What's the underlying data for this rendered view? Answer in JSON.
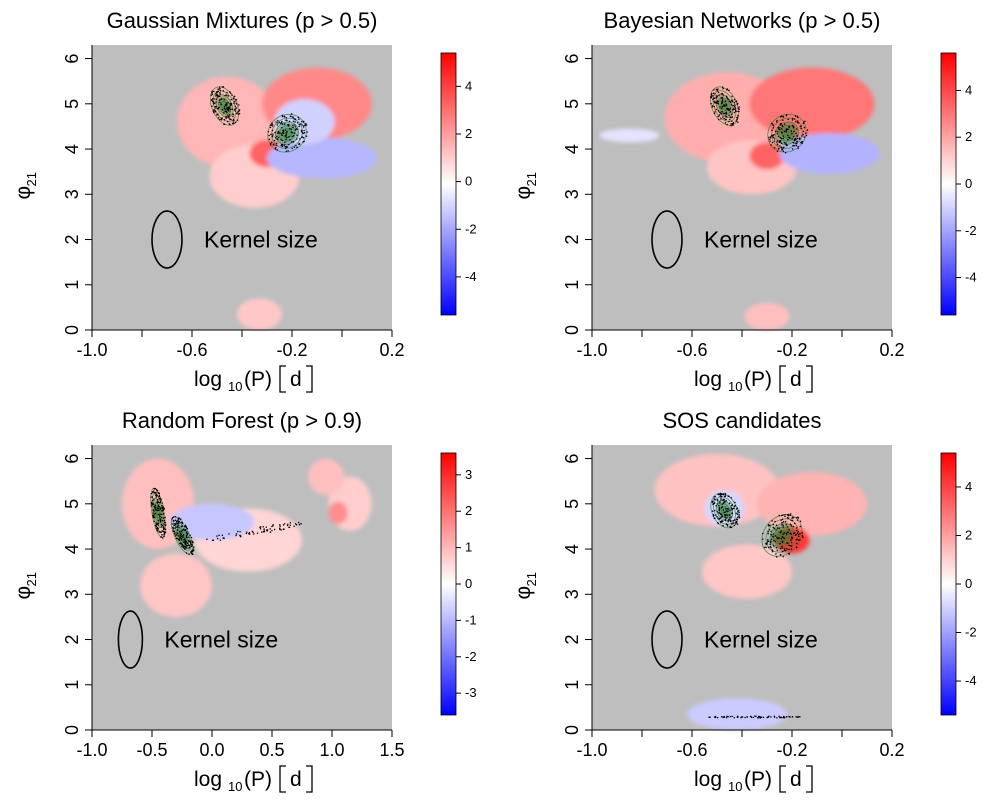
{
  "figure": {
    "type": "heatmap",
    "colors": {
      "negative": "#0000ff",
      "zero": "#ffffff",
      "positive": "#ff0000",
      "masked": "#bebebe",
      "contours": "#2e7d32",
      "points": "#000000"
    },
    "common_labels": {
      "xlabel_main": "log",
      "xlabel_base": "10",
      "xlabel_var": "(P)",
      "xlabel_unit": "d",
      "ylabel_main": "φ",
      "ylabel_sub": "21",
      "annotation": "Kernel size"
    }
  },
  "chart_data": [
    {
      "id": "gm",
      "type": "heatmap",
      "title": "Gaussian Mixtures (p > 0.5)",
      "xlabel": "log10(P) [d]",
      "ylabel": "φ21",
      "xlim": [
        -1.0,
        0.2
      ],
      "ylim": [
        0,
        6.3
      ],
      "xticks": [
        -1.0,
        -0.8,
        -0.6,
        -0.4,
        -0.2,
        0.0,
        0.2
      ],
      "xtick_labels": [
        "-1.0",
        "",
        "-0.6",
        "",
        "-0.2",
        "",
        "0.2"
      ],
      "yticks": [
        0,
        1,
        2,
        3,
        4,
        5,
        6
      ],
      "ytick_labels": [
        "0",
        "1",
        "2",
        "3",
        "4",
        "5",
        "6"
      ],
      "colorbar": {
        "range": [
          -5.6,
          5.4
        ],
        "ticks": [
          -4,
          -2,
          0,
          2,
          4
        ],
        "tick_labels": [
          "-4",
          "-2",
          "0",
          "2",
          "4"
        ]
      },
      "annotation": "Kernel size",
      "kernel": {
        "x": -0.7,
        "y": 2.0,
        "rx": 0.06,
        "ry": 0.63
      },
      "blobs": [
        {
          "x": -0.46,
          "y": 4.6,
          "rx": 0.2,
          "ry": 1.0,
          "v": 1.6
        },
        {
          "x": -0.1,
          "y": 5.0,
          "rx": 0.22,
          "ry": 0.8,
          "v": 2.6
        },
        {
          "x": -0.35,
          "y": 3.4,
          "rx": 0.18,
          "ry": 0.7,
          "v": 1.1
        },
        {
          "x": -0.3,
          "y": 3.9,
          "rx": 0.07,
          "ry": 0.3,
          "v": 3.4
        },
        {
          "x": -0.08,
          "y": 3.8,
          "rx": 0.22,
          "ry": 0.45,
          "v": -1.6
        },
        {
          "x": -0.15,
          "y": 4.6,
          "rx": 0.12,
          "ry": 0.5,
          "v": -1.0
        },
        {
          "x": -0.33,
          "y": 0.35,
          "rx": 0.09,
          "ry": 0.35,
          "v": 1.2
        }
      ],
      "clusters": [
        {
          "x": -0.47,
          "y": 4.95,
          "rx": 0.05,
          "ry": 0.45,
          "rot": -25,
          "dense": true
        },
        {
          "x": -0.22,
          "y": 4.35,
          "rx": 0.08,
          "ry": 0.4,
          "rot": -40,
          "dense": true
        }
      ]
    },
    {
      "id": "bn",
      "type": "heatmap",
      "title": "Bayesian Networks (p > 0.5)",
      "xlabel": "log10(P) [d]",
      "ylabel": "φ21",
      "xlim": [
        -1.0,
        0.2
      ],
      "ylim": [
        0,
        6.3
      ],
      "xticks": [
        -1.0,
        -0.8,
        -0.6,
        -0.4,
        -0.2,
        0.0,
        0.2
      ],
      "xtick_labels": [
        "-1.0",
        "",
        "-0.6",
        "",
        "-0.2",
        "",
        "0.2"
      ],
      "yticks": [
        0,
        1,
        2,
        3,
        4,
        5,
        6
      ],
      "ytick_labels": [
        "0",
        "1",
        "2",
        "3",
        "4",
        "5",
        "6"
      ],
      "colorbar": {
        "range": [
          -5.6,
          5.6
        ],
        "ticks": [
          -4,
          -2,
          0,
          2,
          4
        ],
        "tick_labels": [
          "-4",
          "-2",
          "0",
          "2",
          "4"
        ]
      },
      "annotation": "Kernel size",
      "kernel": {
        "x": -0.7,
        "y": 2.0,
        "rx": 0.06,
        "ry": 0.63
      },
      "blobs": [
        {
          "x": -0.46,
          "y": 4.7,
          "rx": 0.25,
          "ry": 1.0,
          "v": 1.8
        },
        {
          "x": -0.12,
          "y": 5.0,
          "rx": 0.25,
          "ry": 0.8,
          "v": 3.0
        },
        {
          "x": -0.36,
          "y": 3.6,
          "rx": 0.18,
          "ry": 0.6,
          "v": 1.3
        },
        {
          "x": -0.3,
          "y": 3.85,
          "rx": 0.07,
          "ry": 0.3,
          "v": 3.4
        },
        {
          "x": -0.05,
          "y": 3.9,
          "rx": 0.2,
          "ry": 0.45,
          "v": -1.7
        },
        {
          "x": -0.85,
          "y": 4.3,
          "rx": 0.12,
          "ry": 0.15,
          "v": -0.6
        },
        {
          "x": -0.3,
          "y": 0.3,
          "rx": 0.09,
          "ry": 0.3,
          "v": 1.4
        }
      ],
      "clusters": [
        {
          "x": -0.47,
          "y": 4.95,
          "rx": 0.05,
          "ry": 0.45,
          "rot": -25,
          "dense": true
        },
        {
          "x": -0.22,
          "y": 4.35,
          "rx": 0.08,
          "ry": 0.4,
          "rot": -40,
          "dense": true
        }
      ]
    },
    {
      "id": "rf",
      "type": "heatmap",
      "title": "Random Forest (p > 0.9)",
      "xlabel": "log10(P) [d]",
      "ylabel": "φ21",
      "xlim": [
        -1.0,
        1.5
      ],
      "ylim": [
        0,
        6.3
      ],
      "xticks": [
        -1.0,
        -0.5,
        0.0,
        0.5,
        1.0,
        1.5
      ],
      "xtick_labels": [
        "-1.0",
        "-0.5",
        "0.0",
        "0.5",
        "1.0",
        "1.5"
      ],
      "yticks": [
        0,
        1,
        2,
        3,
        4,
        5,
        6
      ],
      "ytick_labels": [
        "0",
        "1",
        "2",
        "3",
        "4",
        "5",
        "6"
      ],
      "colorbar": {
        "range": [
          -3.6,
          3.6
        ],
        "ticks": [
          -3,
          -2,
          -1,
          0,
          1,
          2,
          3
        ],
        "tick_labels": [
          "-3",
          "-2",
          "-1",
          "0",
          "1",
          "2",
          "3"
        ]
      },
      "annotation": "Kernel size",
      "kernel": {
        "x": -0.68,
        "y": 2.0,
        "rx": 0.1,
        "ry": 0.63
      },
      "blobs": [
        {
          "x": -0.45,
          "y": 5.0,
          "rx": 0.3,
          "ry": 1.0,
          "v": 0.9
        },
        {
          "x": 0.3,
          "y": 4.2,
          "rx": 0.45,
          "ry": 0.7,
          "v": 0.6
        },
        {
          "x": -0.3,
          "y": 3.2,
          "rx": 0.3,
          "ry": 0.7,
          "v": 0.8
        },
        {
          "x": 0.0,
          "y": 4.6,
          "rx": 0.35,
          "ry": 0.4,
          "v": -0.8
        },
        {
          "x": 1.15,
          "y": 5.0,
          "rx": 0.18,
          "ry": 0.6,
          "v": 0.7
        },
        {
          "x": 0.95,
          "y": 5.6,
          "rx": 0.15,
          "ry": 0.4,
          "v": 0.9
        },
        {
          "x": 1.05,
          "y": 4.8,
          "rx": 0.08,
          "ry": 0.25,
          "v": 1.6
        }
      ],
      "clusters": [
        {
          "x": -0.45,
          "y": 4.8,
          "rx": 0.05,
          "ry": 0.55,
          "rot": -10,
          "dense": true
        },
        {
          "x": -0.25,
          "y": 4.3,
          "rx": 0.06,
          "ry": 0.45,
          "rot": -25,
          "dense": true
        },
        {
          "x": 0.35,
          "y": 4.4,
          "rx": 0.4,
          "ry": 0.08,
          "rot": -10,
          "dense": false
        }
      ]
    },
    {
      "id": "sos",
      "type": "heatmap",
      "title": "SOS candidates",
      "xlabel": "log10(P) [d]",
      "ylabel": "φ21",
      "xlim": [
        -1.0,
        0.2
      ],
      "ylim": [
        0,
        6.3
      ],
      "xticks": [
        -1.0,
        -0.8,
        -0.6,
        -0.4,
        -0.2,
        0.0,
        0.2
      ],
      "xtick_labels": [
        "-1.0",
        "",
        "-0.6",
        "",
        "-0.2",
        "",
        "0.2"
      ],
      "yticks": [
        0,
        1,
        2,
        3,
        4,
        5,
        6
      ],
      "ytick_labels": [
        "0",
        "1",
        "2",
        "3",
        "4",
        "5",
        "6"
      ],
      "colorbar": {
        "range": [
          -5.4,
          5.4
        ],
        "ticks": [
          -4,
          -2,
          0,
          2,
          4
        ],
        "tick_labels": [
          "-4",
          "-2",
          "0",
          "2",
          "4"
        ]
      },
      "annotation": "Kernel size",
      "kernel": {
        "x": -0.7,
        "y": 2.0,
        "rx": 0.06,
        "ry": 0.63
      },
      "blobs": [
        {
          "x": -0.5,
          "y": 5.3,
          "rx": 0.25,
          "ry": 0.8,
          "v": 1.3
        },
        {
          "x": -0.12,
          "y": 5.0,
          "rx": 0.22,
          "ry": 0.7,
          "v": 1.6
        },
        {
          "x": -0.38,
          "y": 3.5,
          "rx": 0.18,
          "ry": 0.6,
          "v": 1.2
        },
        {
          "x": -0.47,
          "y": 4.9,
          "rx": 0.08,
          "ry": 0.4,
          "v": -0.9
        },
        {
          "x": -0.2,
          "y": 4.2,
          "rx": 0.07,
          "ry": 0.3,
          "v": 4.2
        },
        {
          "x": -0.42,
          "y": 0.35,
          "rx": 0.2,
          "ry": 0.35,
          "v": -1.1
        }
      ],
      "clusters": [
        {
          "x": -0.47,
          "y": 4.85,
          "rx": 0.05,
          "ry": 0.4,
          "rot": -25,
          "dense": true
        },
        {
          "x": -0.24,
          "y": 4.3,
          "rx": 0.09,
          "ry": 0.4,
          "rot": -50,
          "dense": true
        },
        {
          "x": -0.35,
          "y": 0.3,
          "rx": 0.18,
          "ry": 0.02,
          "rot": 0,
          "dense": false
        }
      ]
    }
  ]
}
